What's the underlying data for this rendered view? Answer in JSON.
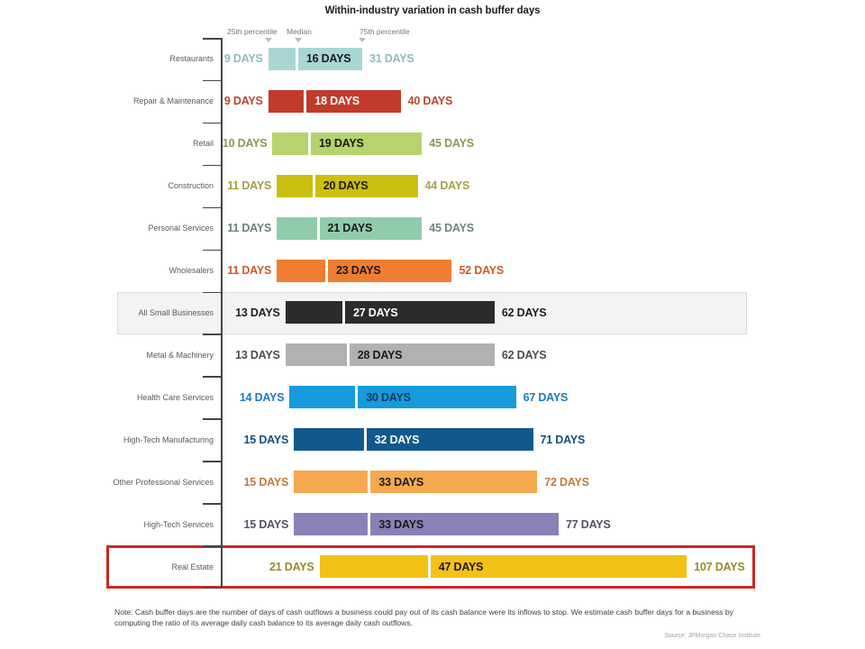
{
  "page": {
    "note": "Note: Cash buffer days are the number of days of cash outflows a business could pay out of its cash balance were its inflows to stop. We estimate cash buffer days for a business by computing the ratio of its average daily cash balance to its average daily cash outflows.",
    "source": "Source:  JPMorgan Chase Institute"
  },
  "chart_data": {
    "type": "bar",
    "subtype": "percentile-range-horizontal",
    "title": "Within-industry variation in cash buffer days",
    "unit_suffix": " DAYS",
    "legend": {
      "p25": "25th percentile",
      "median": "Median",
      "p75": "75th percentile",
      "position": "top"
    },
    "axis": {
      "value_min": 0,
      "value_max": 115,
      "axis_hidden": true,
      "grid": false
    },
    "rows": [
      {
        "label": "Restaurants",
        "p25": 9,
        "median": 16,
        "p75": 31,
        "bar_color": "#a9d6d4",
        "value_label_color": "#92babb",
        "median_text_color": "#1a1a1a",
        "highlight_band": false,
        "red_box": false
      },
      {
        "label": "Repair & Maintenance",
        "p25": 9,
        "median": 18,
        "p75": 40,
        "bar_color": "#c23a2b",
        "value_label_color": "#bb4530",
        "median_text_color": "#ffffff",
        "highlight_band": false,
        "red_box": false
      },
      {
        "label": "Retail",
        "p25": 10,
        "median": 19,
        "p75": 45,
        "bar_color": "#b7d36e",
        "value_label_color": "#8f964f",
        "median_text_color": "#1a1a1a",
        "highlight_band": false,
        "red_box": false
      },
      {
        "label": "Construction",
        "p25": 11,
        "median": 20,
        "p75": 44,
        "bar_color": "#cbbf10",
        "value_label_color": "#a5a044",
        "median_text_color": "#1a1a1a",
        "highlight_band": false,
        "red_box": false
      },
      {
        "label": "Personal Services",
        "p25": 11,
        "median": 21,
        "p75": 45,
        "bar_color": "#90ccab",
        "value_label_color": "#6e8378",
        "median_text_color": "#1a1a1a",
        "highlight_band": false,
        "red_box": false
      },
      {
        "label": "Wholesalers",
        "p25": 11,
        "median": 23,
        "p75": 52,
        "bar_color": "#ef7d30",
        "value_label_color": "#cf5a28",
        "median_text_color": "#1a1a1a",
        "highlight_band": false,
        "red_box": false
      },
      {
        "label": "All Small Businesses",
        "p25": 13,
        "median": 27,
        "p75": 62,
        "bar_color": "#2d2b2a",
        "value_label_color": "#1f1f1f",
        "median_text_color": "#ffffff",
        "highlight_band": true,
        "red_box": false
      },
      {
        "label": "Metal & Machinery",
        "p25": 13,
        "median": 28,
        "p75": 62,
        "bar_color": "#b2b1b0",
        "value_label_color": "#4c4c4c",
        "median_text_color": "#1a1a1a",
        "highlight_band": false,
        "red_box": false
      },
      {
        "label": "Health Care Services",
        "p25": 14,
        "median": 30,
        "p75": 67,
        "bar_color": "#169bdd",
        "value_label_color": "#1a79c2",
        "median_text_color": "#10395e",
        "highlight_band": false,
        "red_box": false
      },
      {
        "label": "High-Tech Manufacturing",
        "p25": 15,
        "median": 32,
        "p75": 71,
        "bar_color": "#11588c",
        "value_label_color": "#174f79",
        "median_text_color": "#ffffff",
        "highlight_band": false,
        "red_box": false
      },
      {
        "label": "Other Professional Services",
        "p25": 15,
        "median": 33,
        "p75": 72,
        "bar_color": "#f6a94e",
        "value_label_color": "#bf7b3d",
        "median_text_color": "#1a1a1a",
        "highlight_band": false,
        "red_box": false
      },
      {
        "label": "High-Tech Services",
        "p25": 15,
        "median": 33,
        "p75": 77,
        "bar_color": "#8b81b9",
        "value_label_color": "#575067",
        "median_text_color": "#1a1a1a",
        "highlight_band": false,
        "red_box": false
      },
      {
        "label": "Real Estate",
        "p25": 21,
        "median": 47,
        "p75": 107,
        "bar_color": "#f3c117",
        "value_label_color": "#97892b",
        "median_text_color": "#1a1a1a",
        "highlight_band": false,
        "red_box": true
      }
    ]
  }
}
